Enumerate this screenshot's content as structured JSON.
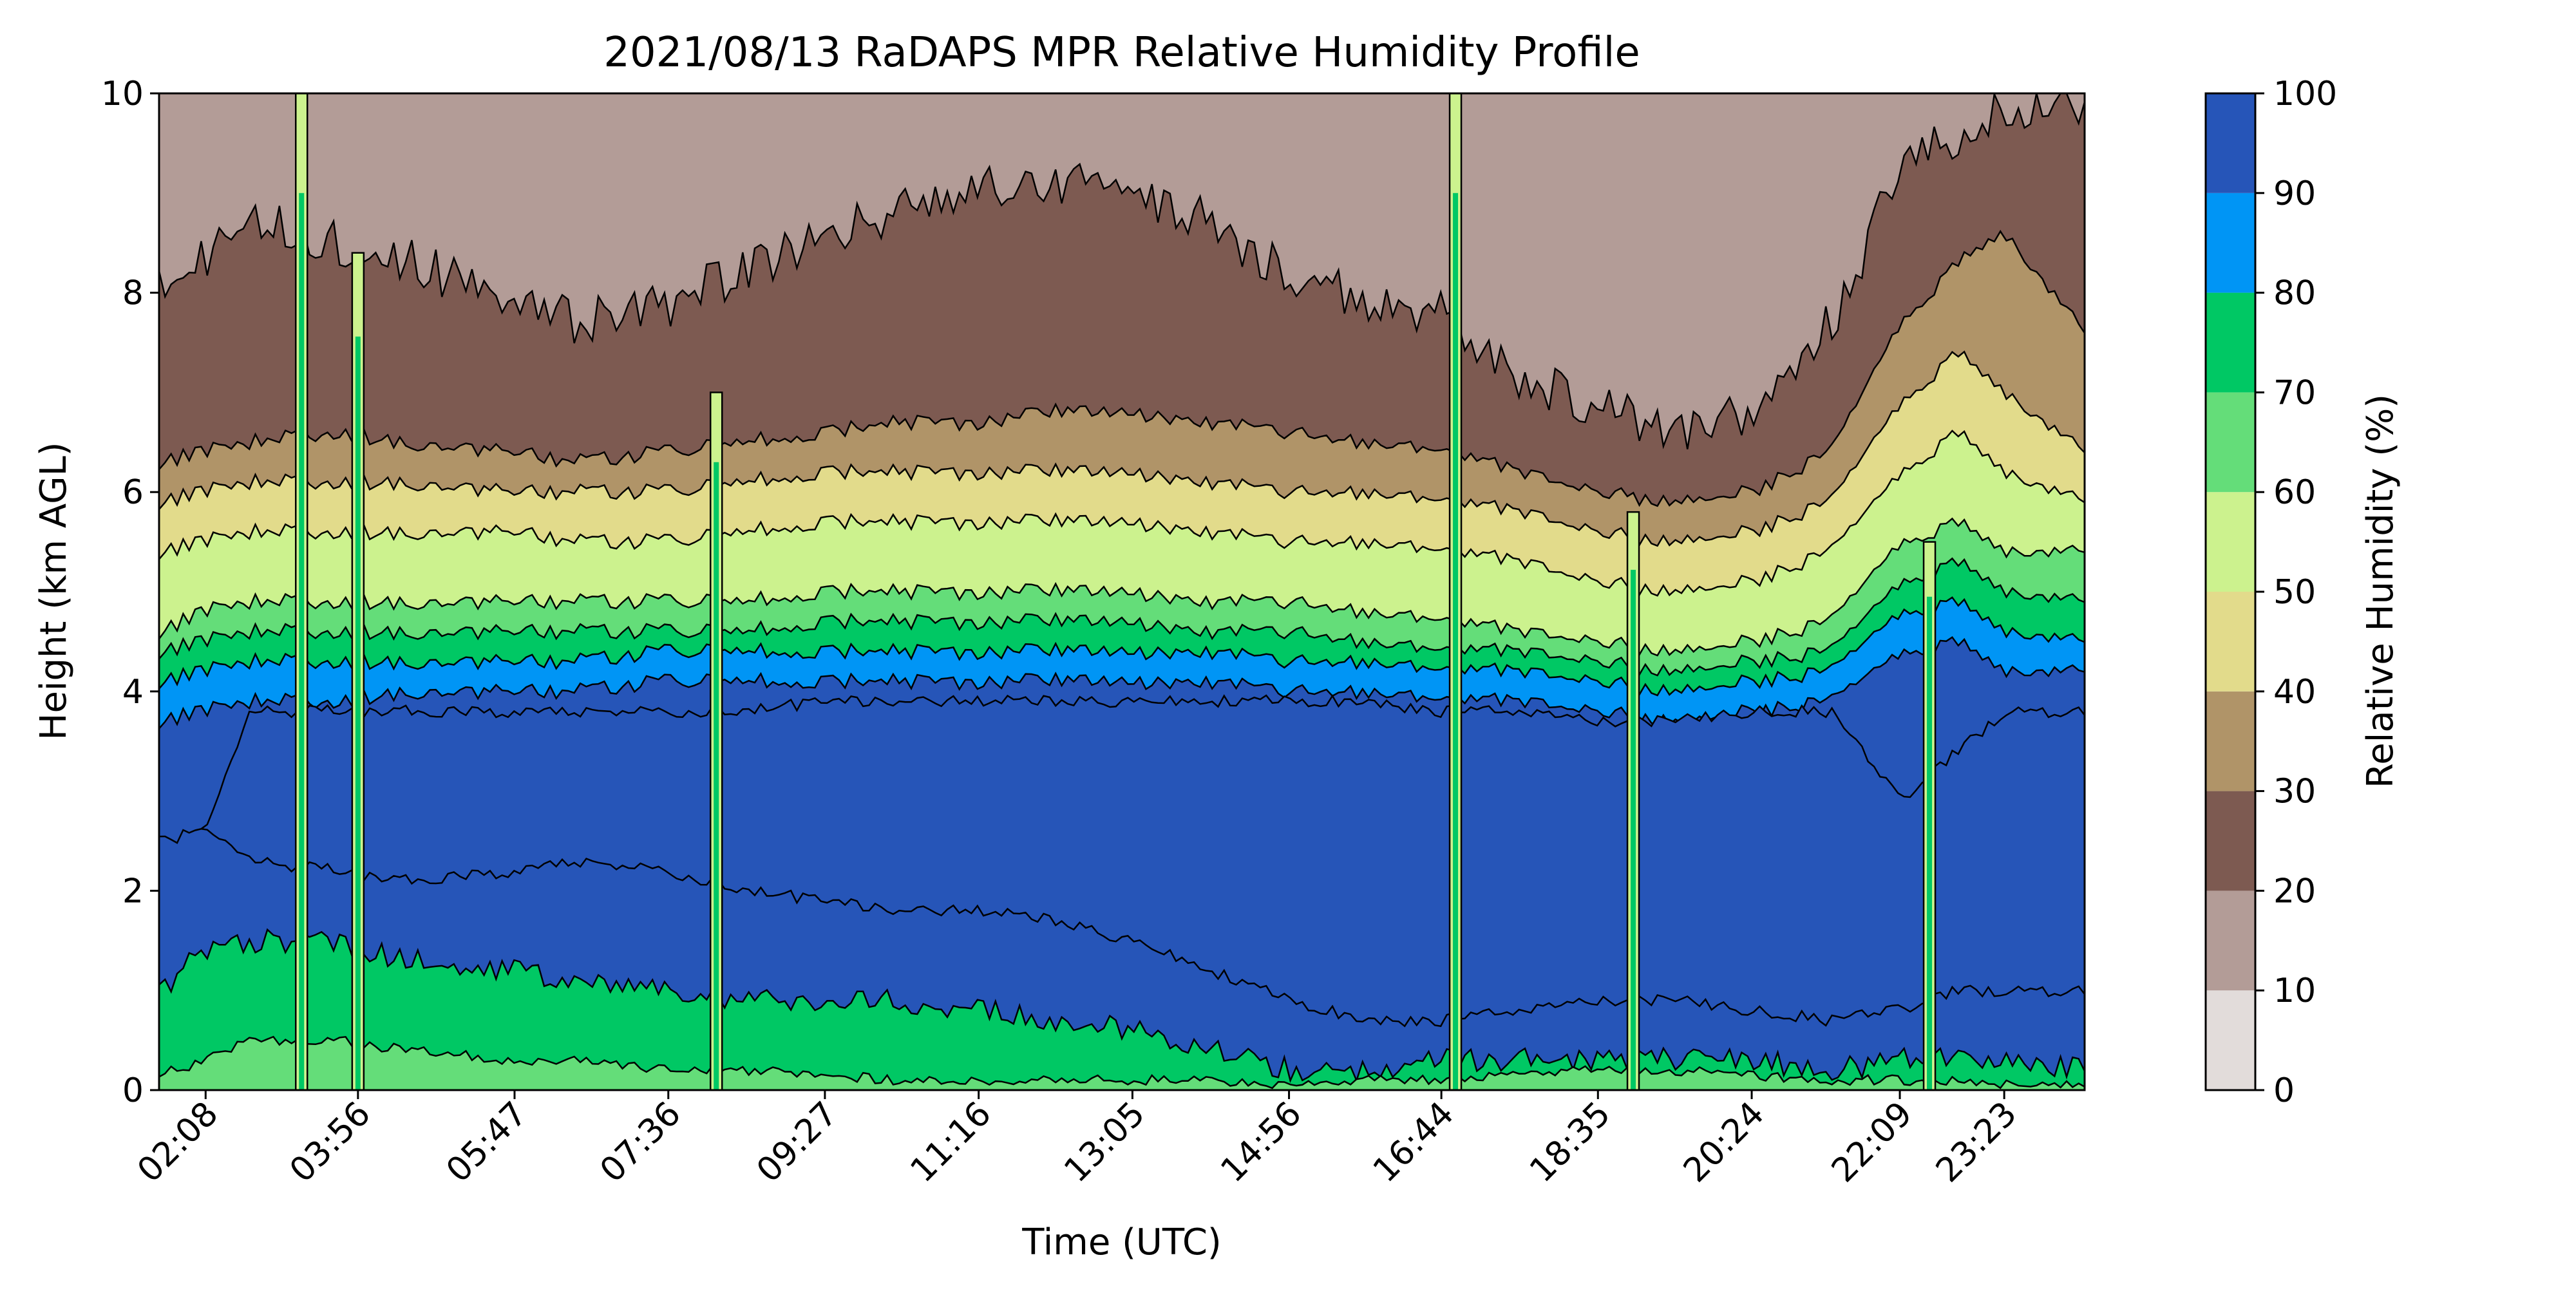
{
  "chart_data": {
    "type": "heatmap",
    "title": "2021/08/13 RaDAPS MPR Relative Humidity Profile",
    "xlabel": "Time (UTC)",
    "ylabel": "Height (km AGL)",
    "xlim": [
      "01:35",
      "24:20"
    ],
    "ylim": [
      0,
      10
    ],
    "x_ticks": [
      "02:08",
      "03:56",
      "05:47",
      "07:36",
      "09:27",
      "11:16",
      "13:05",
      "14:56",
      "16:44",
      "18:35",
      "20:24",
      "22:09",
      "23:23"
    ],
    "y_ticks": [
      0,
      2,
      4,
      6,
      8,
      10
    ],
    "colorbar": {
      "label": "Relative Humidity (%)",
      "levels": [
        0,
        10,
        20,
        30,
        40,
        50,
        60,
        70,
        80,
        90,
        100
      ],
      "colors": [
        "#e2dcda",
        "#b39c97",
        "#7d5a51",
        "#b09468",
        "#e2db8b",
        "#ccf28e",
        "#64dd79",
        "#00c864",
        "#0095f5",
        "#2655b8"
      ]
    },
    "profile_x": [
      "01:35",
      "02:08",
      "02:40",
      "03:40",
      "04:30",
      "05:47",
      "06:30",
      "07:36",
      "08:30",
      "09:27",
      "10:20",
      "11:16",
      "12:10",
      "13:05",
      "14:00",
      "14:56",
      "15:50",
      "16:44",
      "17:40",
      "18:35",
      "19:30",
      "20:24",
      "21:20",
      "22:09",
      "22:50",
      "23:23",
      "24:20"
    ],
    "level_heights": [
      {
        "rh": 10,
        "values": [
          0.0,
          0.0,
          0.0,
          0.0,
          0.0,
          0.0,
          0.0,
          0.0,
          0.0,
          0.0,
          0.0,
          0.0,
          0.0,
          0.0,
          0.0,
          0.0,
          0.0,
          0.0,
          0.0,
          0.0,
          0.0,
          0.0,
          0.0,
          0.0,
          0.0,
          0.0,
          0.0
        ]
      },
      {
        "rh": 20,
        "values": [
          8.0,
          8.4,
          8.8,
          8.5,
          8.3,
          8.0,
          7.7,
          7.9,
          8.2,
          8.6,
          8.8,
          9.0,
          9.1,
          9.0,
          8.7,
          8.2,
          7.9,
          7.8,
          7.1,
          6.9,
          6.6,
          6.8,
          7.7,
          9.2,
          9.6,
          9.9,
          9.9
        ]
      },
      {
        "rh": 30,
        "values": [
          6.3,
          6.4,
          6.5,
          6.6,
          6.5,
          6.4,
          6.3,
          6.4,
          6.5,
          6.6,
          6.7,
          6.7,
          6.8,
          6.8,
          6.7,
          6.6,
          6.5,
          6.4,
          6.2,
          6.0,
          5.9,
          6.0,
          6.4,
          7.7,
          8.3,
          8.6,
          7.6
        ]
      },
      {
        "rh": 40,
        "values": [
          5.9,
          6.0,
          6.1,
          6.1,
          6.1,
          6.0,
          6.0,
          6.0,
          6.1,
          6.2,
          6.2,
          6.2,
          6.2,
          6.2,
          6.1,
          6.0,
          6.0,
          5.9,
          5.8,
          5.6,
          5.5,
          5.6,
          5.9,
          6.9,
          7.4,
          7.0,
          6.4
        ]
      },
      {
        "rh": 50,
        "values": [
          5.4,
          5.5,
          5.6,
          5.6,
          5.6,
          5.6,
          5.5,
          5.5,
          5.6,
          5.7,
          5.7,
          5.7,
          5.7,
          5.7,
          5.6,
          5.5,
          5.5,
          5.4,
          5.3,
          5.1,
          5.0,
          5.1,
          5.4,
          6.2,
          6.6,
          6.2,
          5.9
        ]
      },
      {
        "rh": 60,
        "values": [
          4.6,
          4.8,
          4.9,
          4.9,
          4.9,
          4.9,
          4.9,
          4.9,
          4.9,
          5.0,
          5.0,
          5.0,
          5.0,
          5.0,
          4.9,
          4.9,
          4.8,
          4.7,
          4.6,
          4.5,
          4.4,
          4.5,
          4.7,
          5.5,
          5.7,
          5.4,
          5.4
        ]
      },
      {
        "rh": 70,
        "values": [
          4.4,
          4.5,
          4.6,
          4.6,
          4.6,
          4.6,
          4.6,
          4.6,
          4.6,
          4.7,
          4.7,
          4.7,
          4.7,
          4.7,
          4.6,
          4.6,
          4.5,
          4.4,
          4.4,
          4.3,
          4.2,
          4.3,
          4.4,
          5.1,
          5.3,
          5.0,
          4.9
        ]
      },
      {
        "rh": 80,
        "values": [
          4.1,
          4.2,
          4.3,
          4.3,
          4.3,
          4.3,
          4.3,
          4.4,
          4.4,
          4.4,
          4.4,
          4.4,
          4.4,
          4.4,
          4.4,
          4.3,
          4.3,
          4.2,
          4.2,
          4.1,
          4.0,
          4.1,
          4.2,
          4.8,
          4.9,
          4.6,
          4.5
        ]
      },
      {
        "rh": 90,
        "values": [
          3.7,
          3.8,
          3.9,
          3.9,
          4.0,
          4.0,
          4.0,
          4.1,
          4.1,
          4.1,
          4.1,
          4.1,
          4.1,
          4.1,
          4.1,
          4.0,
          4.0,
          3.9,
          3.9,
          3.8,
          3.7,
          3.8,
          3.9,
          4.4,
          4.5,
          4.2,
          4.2
        ]
      },
      {
        "rh": 100,
        "values": [
          10.0,
          10.0,
          10.0,
          10.0,
          10.0,
          10.0,
          10.0,
          10.0,
          10.0,
          10.0,
          10.0,
          10.0,
          10.0,
          10.0,
          10.0,
          10.0,
          10.0,
          10.0,
          10.0,
          10.0,
          10.0,
          10.0,
          10.0,
          10.0,
          10.0,
          10.0,
          10.0
        ]
      }
    ],
    "core_90_top": [
      2.5,
      2.6,
      3.8,
      3.8,
      3.8,
      3.8,
      3.8,
      3.8,
      3.8,
      3.9,
      3.9,
      3.9,
      3.9,
      3.9,
      3.9,
      3.9,
      3.9,
      3.8,
      3.8,
      3.7,
      3.7,
      3.8,
      3.8,
      2.9,
      3.4,
      3.8,
      3.8
    ],
    "core_90_bottom": [
      2.5,
      2.6,
      2.3,
      2.2,
      2.1,
      2.2,
      2.3,
      2.2,
      2.0,
      1.9,
      1.8,
      1.8,
      1.7,
      1.5,
      1.2,
      0.9,
      0.7,
      0.7,
      0.8,
      0.9,
      0.9,
      0.8,
      0.7,
      0.8,
      1.0,
      1.0,
      1.0
    ],
    "low_80_top": [
      1.0,
      1.4,
      1.5,
      1.5,
      1.3,
      1.2,
      1.1,
      1.0,
      0.9,
      0.9,
      0.9,
      0.8,
      0.7,
      0.6,
      0.4,
      0.2,
      0.2,
      0.3,
      0.3,
      0.3,
      0.3,
      0.3,
      0.2,
      0.3,
      0.3,
      0.3,
      0.2
    ],
    "low_70_top": [
      0.15,
      0.3,
      0.5,
      0.5,
      0.4,
      0.3,
      0.3,
      0.2,
      0.2,
      0.15,
      0.1,
      0.1,
      0.1,
      0.1,
      0.1,
      0.05,
      0.1,
      0.1,
      0.15,
      0.2,
      0.2,
      0.15,
      0.1,
      0.1,
      0.1,
      0.05,
      0.05
    ],
    "moist_columns": [
      {
        "time": "03:16",
        "top": 10.0
      },
      {
        "time": "03:56",
        "top": 8.4
      },
      {
        "time": "08:10",
        "top": 7.0
      },
      {
        "time": "16:54",
        "top": 10.0
      },
      {
        "time": "19:00",
        "top": 5.8
      },
      {
        "time": "22:30",
        "top": 5.5
      }
    ]
  }
}
